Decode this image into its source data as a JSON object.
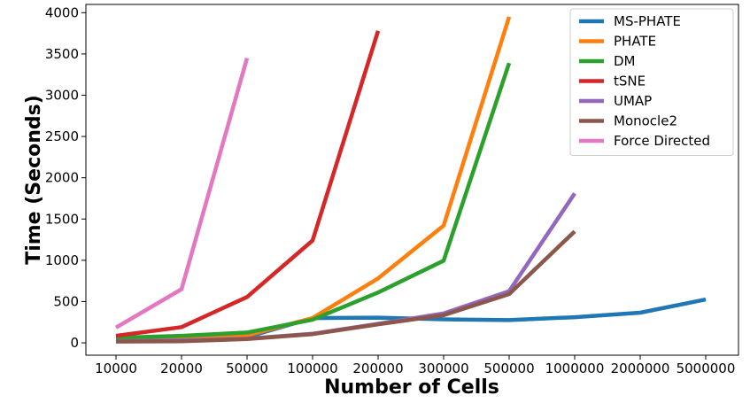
{
  "chart_data": {
    "type": "line",
    "title": "",
    "xlabel": "Number of Cells",
    "ylabel": "Time (Seconds)",
    "categories": [
      "10000",
      "20000",
      "50000",
      "100000",
      "200000",
      "300000",
      "500000",
      "1000000",
      "2000000",
      "5000000"
    ],
    "yticks": [
      "0",
      "500",
      "1000",
      "1500",
      "2000",
      "2500",
      "3000",
      "3500",
      "4000"
    ],
    "ylim": [
      -150,
      4100
    ],
    "grid": false,
    "legend_position": "top-right",
    "series": [
      {
        "name": "MS-PHATE",
        "color": "#1f77b4",
        "values": [
          60,
          60,
          70,
          300,
          305,
          285,
          275,
          310,
          365,
          525
        ]
      },
      {
        "name": "PHATE",
        "color": "#ff7f0e",
        "values": [
          50,
          55,
          90,
          300,
          780,
          1420,
          3950,
          null,
          null,
          null
        ]
      },
      {
        "name": "DM",
        "color": "#2ca02c",
        "values": [
          60,
          85,
          125,
          280,
          610,
          995,
          3390,
          null,
          null,
          null
        ]
      },
      {
        "name": "tSNE",
        "color": "#d62728",
        "values": [
          85,
          190,
          555,
          1240,
          3780,
          null,
          null,
          null,
          null,
          null
        ]
      },
      {
        "name": "UMAP",
        "color": "#9467bd",
        "values": [
          20,
          30,
          50,
          110,
          230,
          355,
          625,
          1810,
          null,
          null
        ]
      },
      {
        "name": "Monocle2",
        "color": "#8c564b",
        "values": [
          15,
          20,
          45,
          105,
          225,
          335,
          590,
          1350,
          null,
          null
        ]
      },
      {
        "name": "Force Directed",
        "color": "#e377c2",
        "values": [
          185,
          650,
          3450,
          null,
          null,
          null,
          null,
          null,
          null,
          null
        ]
      }
    ]
  }
}
